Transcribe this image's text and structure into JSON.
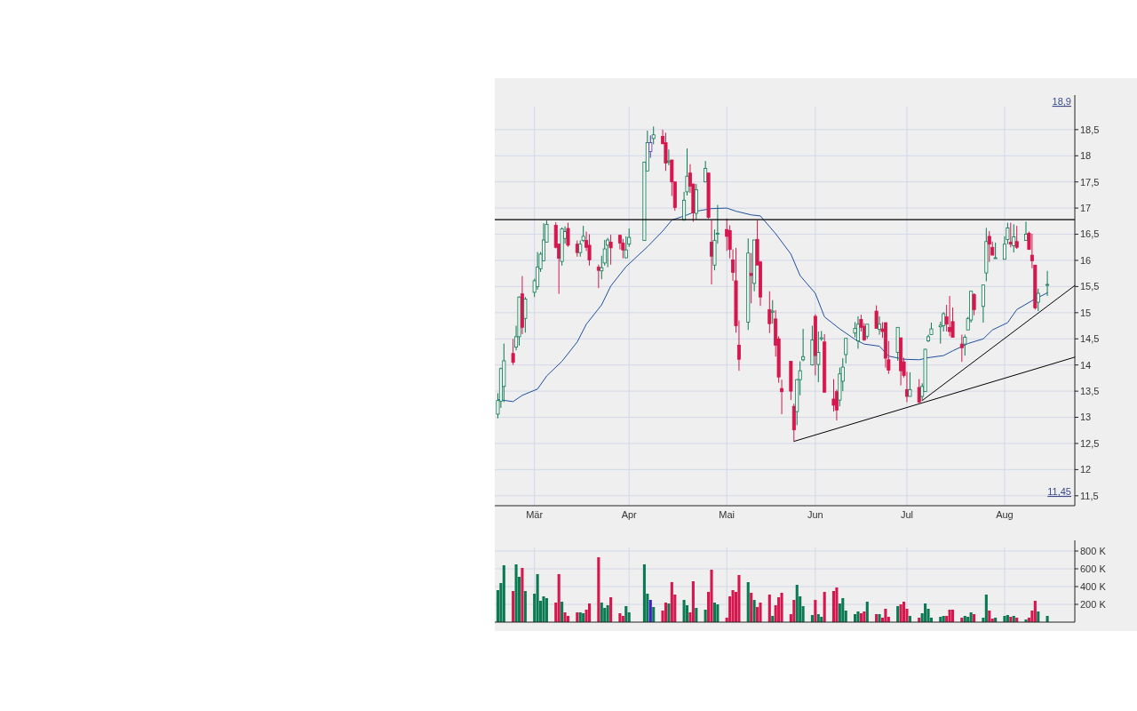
{
  "chart_data": [
    {
      "type": "candlestick",
      "x": [
        "--02-17",
        "--02-18",
        "--02-19",
        "--02-22",
        "--02-23",
        "--02-24",
        "--02-25",
        "--02-26",
        "--03-01",
        "--03-02",
        "--03-03",
        "--03-04",
        "--03-05",
        "--03-08",
        "--03-09",
        "--03-10",
        "--03-11",
        "--03-12",
        "--03-15",
        "--03-16",
        "--03-17",
        "--03-18",
        "--03-19",
        "--03-22",
        "--03-23",
        "--03-24",
        "--03-25",
        "--03-26",
        "--03-29",
        "--03-30",
        "--03-31",
        "--04-01",
        "--04-06",
        "--04-07",
        "--04-08",
        "--04-09",
        "--04-12",
        "--04-13",
        "--04-14",
        "--04-15",
        "--04-16",
        "--04-19",
        "--04-20",
        "--04-21",
        "--04-22",
        "--04-23",
        "--04-26",
        "--04-27",
        "--04-28",
        "--04-29",
        "--04-30",
        "--05-03",
        "--05-04",
        "--05-05",
        "--05-06",
        "--05-07",
        "--05-10",
        "--05-11",
        "--05-12",
        "--05-13",
        "--05-14",
        "--05-17",
        "--05-18",
        "--05-19",
        "--05-20",
        "--05-21",
        "--05-24",
        "--05-25",
        "--05-26",
        "--05-27",
        "--05-28",
        "--05-31",
        "--06-01",
        "--06-02",
        "--06-03",
        "--06-04",
        "--06-07",
        "--06-08",
        "--06-09",
        "--06-10",
        "--06-11",
        "--06-14",
        "--06-15",
        "--06-16",
        "--06-17",
        "--06-18",
        "--06-21",
        "--06-22",
        "--06-23",
        "--06-24",
        "--06-25",
        "--06-28",
        "--06-29",
        "--06-30",
        "--07-01",
        "--07-02",
        "--07-05",
        "--07-06",
        "--07-07",
        "--07-08",
        "--07-09",
        "--07-12",
        "--07-13",
        "--07-14",
        "--07-15",
        "--07-16",
        "--07-19",
        "--07-20",
        "--07-21",
        "--07-22",
        "--07-23",
        "--07-26",
        "--07-27",
        "--07-28",
        "--07-29",
        "--07-30",
        "--08-02",
        "--08-03",
        "--08-04",
        "--08-05",
        "--08-06",
        "--08-09",
        "--08-10",
        "--08-11",
        "--08-12",
        "--08-13",
        "--08-16"
      ],
      "ohlc": [
        [
          13.06,
          13.46,
          12.98,
          13.32
        ],
        [
          13.31,
          13.95,
          13.18,
          13.93
        ],
        [
          13.59,
          14.41,
          13.29,
          14.08
        ],
        [
          14.22,
          14.5,
          14.0,
          14.05
        ],
        [
          14.34,
          14.75,
          14.28,
          14.54
        ],
        [
          14.54,
          15.31,
          14.37,
          15.3
        ],
        [
          15.36,
          15.7,
          14.59,
          14.72
        ],
        [
          14.89,
          15.3,
          14.62,
          15.26
        ],
        [
          15.39,
          15.65,
          15.3,
          15.61
        ],
        [
          15.5,
          16.16,
          15.44,
          15.87
        ],
        [
          15.84,
          16.16,
          15.78,
          16.12
        ],
        [
          15.99,
          16.71,
          15.98,
          16.39
        ],
        [
          16.35,
          16.76,
          16.35,
          16.69
        ],
        [
          16.67,
          16.73,
          16.23,
          16.25
        ],
        [
          16.31,
          16.32,
          15.36,
          16.04
        ],
        [
          15.98,
          16.63,
          15.9,
          16.6
        ],
        [
          16.42,
          16.65,
          16.32,
          16.55
        ],
        [
          16.61,
          16.72,
          16.26,
          16.29
        ],
        [
          16.31,
          16.38,
          16.07,
          16.15
        ],
        [
          16.15,
          16.38,
          16.07,
          16.31
        ],
        [
          16.38,
          16.66,
          16.35,
          16.46
        ],
        [
          16.38,
          16.55,
          16.18,
          16.25
        ],
        [
          16.29,
          16.5,
          15.9,
          16.01
        ],
        [
          15.87,
          15.92,
          15.47,
          15.81
        ],
        [
          15.8,
          16.09,
          15.64,
          15.86
        ],
        [
          15.95,
          16.39,
          15.9,
          16.22
        ],
        [
          16.29,
          16.43,
          15.87,
          16.39
        ],
        [
          16.35,
          16.49,
          15.92,
          16.24
        ],
        [
          16.48,
          16.49,
          16.21,
          16.33
        ],
        [
          16.33,
          16.41,
          16.04,
          16.2
        ],
        [
          16.05,
          16.46,
          16.04,
          16.2
        ],
        [
          16.31,
          16.61,
          16.26,
          16.44
        ],
        [
          16.38,
          17.88,
          16.38,
          17.88
        ],
        [
          17.71,
          18.48,
          17.71,
          18.25
        ],
        [
          18.08,
          18.39,
          17.96,
          18.25
        ],
        [
          18.33,
          18.56,
          18.22,
          18.4
        ],
        [
          18.37,
          18.5,
          18.22,
          18.23
        ],
        [
          18.25,
          18.44,
          17.71,
          17.86
        ],
        [
          17.88,
          18.12,
          17.82,
          17.9
        ],
        [
          17.92,
          17.92,
          17.23,
          17.5
        ],
        [
          17.5,
          17.5,
          16.95,
          17.01
        ],
        [
          16.77,
          17.31,
          16.76,
          17.15
        ],
        [
          17.31,
          18.14,
          17.24,
          17.61
        ],
        [
          17.67,
          17.84,
          17.29,
          17.42
        ],
        [
          17.46,
          17.46,
          16.74,
          16.91
        ],
        [
          16.9,
          17.46,
          16.78,
          17.35
        ],
        [
          17.5,
          17.9,
          17.5,
          17.76
        ],
        [
          17.67,
          17.67,
          16.8,
          16.82
        ],
        [
          16.35,
          16.77,
          15.54,
          16.08
        ],
        [
          15.91,
          16.59,
          15.81,
          16.38
        ],
        [
          16.5,
          17.06,
          16.32,
          16.52
        ],
        [
          16.59,
          16.8,
          16.18,
          16.46
        ],
        [
          16.57,
          16.67,
          16.04,
          16.21
        ],
        [
          16.01,
          16.21,
          15.61,
          15.77
        ],
        [
          15.61,
          16.24,
          14.62,
          14.75
        ],
        [
          14.38,
          14.85,
          13.89,
          14.11
        ],
        [
          14.82,
          16.42,
          14.67,
          16.14
        ],
        [
          15.75,
          16.14,
          15.18,
          15.71
        ],
        [
          15.56,
          16.39,
          15.41,
          16.39
        ],
        [
          16.4,
          16.76,
          15.91,
          15.91
        ],
        [
          15.97,
          15.99,
          15.13,
          15.3
        ],
        [
          15.06,
          15.41,
          14.61,
          14.79
        ],
        [
          15.01,
          15.24,
          14.79,
          15.03
        ],
        [
          14.88,
          15.05,
          14.16,
          14.38
        ],
        [
          14.5,
          14.55,
          13.66,
          13.77
        ],
        [
          13.55,
          13.72,
          13.06,
          13.49
        ],
        [
          14.07,
          14.07,
          13.33,
          13.5
        ],
        [
          13.21,
          13.26,
          12.54,
          12.76
        ],
        [
          13.11,
          13.73,
          12.85,
          13.72
        ],
        [
          13.72,
          14.07,
          13.42,
          13.89
        ],
        [
          14.1,
          14.69,
          14.07,
          14.16
        ],
        [
          14.0,
          14.75,
          13.99,
          14.48
        ],
        [
          14.93,
          14.97,
          13.8,
          14.18
        ],
        [
          14.01,
          14.64,
          13.67,
          14.24
        ],
        [
          14.5,
          14.65,
          14.46,
          14.52
        ],
        [
          14.44,
          14.59,
          13.48,
          13.48
        ],
        [
          13.35,
          13.73,
          13.11,
          13.23
        ],
        [
          13.49,
          13.53,
          12.94,
          13.14
        ],
        [
          13.33,
          13.95,
          13.21,
          13.83
        ],
        [
          13.69,
          14.13,
          13.5,
          13.96
        ],
        [
          14.2,
          14.51,
          14.03,
          14.51
        ],
        [
          14.61,
          14.82,
          14.53,
          14.7
        ],
        [
          14.46,
          14.93,
          14.31,
          14.78
        ],
        [
          14.87,
          14.96,
          14.64,
          14.72
        ],
        [
          14.74,
          14.8,
          14.46,
          14.48
        ],
        [
          14.55,
          14.78,
          14.5,
          14.78
        ],
        [
          15.03,
          15.14,
          14.7,
          14.7
        ],
        [
          14.68,
          14.93,
          14.58,
          14.78
        ],
        [
          14.69,
          14.82,
          14.52,
          14.64
        ],
        [
          14.81,
          14.81,
          13.95,
          14.13
        ],
        [
          14.1,
          14.46,
          13.83,
          13.9
        ],
        [
          14.24,
          14.72,
          14.08,
          14.72
        ],
        [
          14.52,
          14.52,
          13.61,
          13.89
        ],
        [
          14.06,
          14.14,
          13.76,
          13.8
        ],
        [
          13.53,
          13.87,
          13.29,
          13.4
        ],
        [
          13.4,
          13.86,
          13.4,
          13.53
        ],
        [
          13.57,
          13.73,
          13.27,
          13.29
        ],
        [
          13.4,
          13.65,
          13.32,
          13.59
        ],
        [
          13.49,
          14.31,
          13.49,
          14.3
        ],
        [
          14.46,
          14.58,
          14.44,
          14.54
        ],
        [
          14.58,
          14.81,
          14.58,
          14.69
        ],
        [
          14.73,
          14.83,
          14.41,
          14.76
        ],
        [
          14.75,
          15.01,
          14.64,
          14.98
        ],
        [
          14.92,
          15.15,
          14.64,
          14.78
        ],
        [
          14.72,
          15.32,
          14.55,
          14.64
        ],
        [
          14.83,
          15.1,
          14.53,
          14.53
        ],
        [
          14.4,
          14.58,
          14.06,
          14.33
        ],
        [
          14.4,
          14.58,
          14.18,
          14.53
        ],
        [
          14.67,
          14.92,
          14.67,
          14.89
        ],
        [
          14.86,
          15.41,
          14.81,
          15.41
        ],
        [
          15.35,
          15.37,
          14.95,
          15.06
        ],
        [
          15.12,
          15.53,
          14.81,
          15.53
        ],
        [
          15.76,
          16.62,
          15.6,
          16.36
        ],
        [
          16.46,
          16.56,
          15.97,
          16.31
        ],
        [
          16.25,
          16.36,
          16.1,
          16.1
        ],
        [
          16.04,
          16.34,
          16.04,
          16.05
        ],
        [
          16.02,
          16.46,
          16.02,
          16.31
        ],
        [
          16.4,
          16.72,
          16.31,
          16.62
        ],
        [
          16.35,
          16.72,
          16.25,
          16.31
        ],
        [
          16.28,
          16.69,
          16.15,
          16.45
        ],
        [
          16.36,
          16.66,
          16.22,
          16.25
        ],
        [
          16.38,
          16.74,
          16.38,
          16.5
        ],
        [
          16.52,
          16.55,
          16.2,
          16.21
        ],
        [
          16.1,
          16.51,
          15.85,
          15.99
        ],
        [
          15.91,
          15.91,
          15.06,
          15.09
        ],
        [
          15.2,
          15.46,
          15.03,
          15.37
        ],
        [
          15.53,
          15.8,
          15.32,
          15.54
        ]
      ],
      "colors": [
        "#0b7a52",
        "#0b7a52",
        "#0b7a52",
        "#d5174d",
        "#0b7a52",
        "#0b7a52",
        "#d5174d",
        "#0b7a52",
        "#0b7a52",
        "#0b7a52",
        "#0b7a52",
        "#0b7a52",
        "#0b7a52",
        "#d5174d",
        "#d5174d",
        "#0b7a52",
        "#0b7a52",
        "#d5174d",
        "#d5174d",
        "#0b7a52",
        "#0b7a52",
        "#d5174d",
        "#d5174d",
        "#d5174d",
        "#0b7a52",
        "#0b7a52",
        "#0b7a52",
        "#d5174d",
        "#d5174d",
        "#d5174d",
        "#0b7a52",
        "#0b7a52",
        "#0b7a52",
        "#0b7a52",
        "#5b2fb5",
        "#0b7a52",
        "#d5174d",
        "#d5174d",
        "#0b7a52",
        "#d5174d",
        "#d5174d",
        "#0b7a52",
        "#0b7a52",
        "#d5174d",
        "#d5174d",
        "#0b7a52",
        "#0b7a52",
        "#d5174d",
        "#d5174d",
        "#0b7a52",
        "#0b7a52",
        "#d5174d",
        "#d5174d",
        "#d5174d",
        "#d5174d",
        "#d5174d",
        "#0b7a52",
        "#d5174d",
        "#0b7a52",
        "#d5174d",
        "#d5174d",
        "#d5174d",
        "#0b7a52",
        "#d5174d",
        "#d5174d",
        "#d5174d",
        "#d5174d",
        "#d5174d",
        "#0b7a52",
        "#0b7a52",
        "#0b7a52",
        "#0b7a52",
        "#d5174d",
        "#0b7a52",
        "#0b7a52",
        "#d5174d",
        "#d5174d",
        "#d5174d",
        "#0b7a52",
        "#0b7a52",
        "#0b7a52",
        "#0b7a52",
        "#0b7a52",
        "#d5174d",
        "#d5174d",
        "#0b7a52",
        "#d5174d",
        "#0b7a52",
        "#d5174d",
        "#d5174d",
        "#d5174d",
        "#0b7a52",
        "#d5174d",
        "#d5174d",
        "#d5174d",
        "#0b7a52",
        "#d5174d",
        "#0b7a52",
        "#0b7a52",
        "#0b7a52",
        "#0b7a52",
        "#0b7a52",
        "#0b7a52",
        "#d5174d",
        "#d5174d",
        "#d5174d",
        "#d5174d",
        "#0b7a52",
        "#0b7a52",
        "#0b7a52",
        "#d5174d",
        "#0b7a52",
        "#0b7a52",
        "#d5174d",
        "#d5174d",
        "#0b7a52",
        "#0b7a52",
        "#0b7a52",
        "#d5174d",
        "#0b7a52",
        "#d5174d",
        "#0b7a52",
        "#d5174d",
        "#d5174d",
        "#d5174d",
        "#0b7a52",
        "#0b7a52"
      ],
      "series": [
        {
          "type": "line",
          "color": "#1f4fa0",
          "x": [
            "--02-17",
            "--02-22",
            "--02-25",
            "--03-02",
            "--03-05",
            "--03-10",
            "--03-15",
            "--03-18",
            "--03-23",
            "--03-26",
            "--03-31",
            "--04-07",
            "--04-12",
            "--04-15",
            "--04-20",
            "--04-23",
            "--04-28",
            "--05-03",
            "--05-06",
            "--05-11",
            "--05-14",
            "--05-19",
            "--05-24",
            "--05-27",
            "--06-01",
            "--06-04",
            "--06-09",
            "--06-14",
            "--06-17",
            "--06-22",
            "--06-25",
            "--06-30",
            "--07-05",
            "--07-08",
            "--07-13",
            "--07-16",
            "--07-21",
            "--07-26",
            "--07-29",
            "--08-03",
            "--08-06",
            "--08-11",
            "--08-16"
          ],
          "values": [
            13.34,
            13.3,
            13.42,
            13.54,
            13.79,
            14.07,
            14.44,
            14.78,
            15.15,
            15.51,
            15.88,
            16.26,
            16.56,
            16.77,
            16.87,
            16.94,
            16.99,
            17.0,
            16.94,
            16.87,
            16.85,
            16.51,
            16.12,
            15.71,
            15.37,
            14.92,
            14.69,
            14.49,
            14.4,
            14.36,
            14.17,
            14.11,
            14.1,
            14.14,
            14.18,
            14.27,
            14.41,
            14.5,
            14.67,
            14.81,
            15.06,
            15.23,
            15.38
          ]
        },
        {
          "type": "line",
          "color": "#000000",
          "x": [
            "--05-25",
            "--08-25"
          ],
          "values": [
            12.54,
            14.15
          ]
        },
        {
          "type": "line",
          "color": "#000000",
          "x": [
            "--07-06",
            "--08-25"
          ],
          "values": [
            13.32,
            15.52
          ]
        }
      ],
      "ref_lines": [
        {
          "axis": "y",
          "value": 16.78,
          "color": "#000000"
        }
      ],
      "annotations": [
        "18,9",
        "11,45"
      ],
      "xlim": [
        "--02-16",
        "--08-25"
      ],
      "xticks": [
        {
          "value": "--03-01",
          "label": "Mär"
        },
        {
          "value": "--04-01",
          "label": "Apr"
        },
        {
          "value": "--05-03",
          "label": "Mai"
        },
        {
          "value": "--06-01",
          "label": "Jun"
        },
        {
          "value": "--07-01",
          "label": "Jul"
        },
        {
          "value": "--08-02",
          "label": "Aug"
        }
      ],
      "ylim": [
        11.31,
        19.16
      ],
      "yticks": [
        {
          "value": 11.5,
          "label": "11,5"
        },
        12,
        {
          "value": 12.5,
          "label": "12,5"
        },
        13,
        {
          "value": 13.5,
          "label": "13,5"
        },
        14,
        {
          "value": 14.5,
          "label": "14,5"
        },
        15,
        {
          "value": 15.5,
          "label": "15,5"
        },
        16,
        {
          "value": 16.5,
          "label": "16,5"
        },
        17,
        {
          "value": 17.5,
          "label": "17,5"
        },
        18,
        {
          "value": 18.5,
          "label": "18,5"
        }
      ],
      "grid": true
    },
    {
      "type": "bar",
      "x": [
        "--02-17",
        "--02-18",
        "--02-19",
        "--02-22",
        "--02-23",
        "--02-24",
        "--02-25",
        "--02-26",
        "--03-01",
        "--03-02",
        "--03-03",
        "--03-04",
        "--03-05",
        "--03-08",
        "--03-09",
        "--03-10",
        "--03-11",
        "--03-12",
        "--03-15",
        "--03-16",
        "--03-17",
        "--03-18",
        "--03-19",
        "--03-22",
        "--03-23",
        "--03-24",
        "--03-25",
        "--03-26",
        "--03-29",
        "--03-30",
        "--03-31",
        "--04-01",
        "--04-06",
        "--04-07",
        "--04-08",
        "--04-09",
        "--04-12",
        "--04-13",
        "--04-14",
        "--04-15",
        "--04-16",
        "--04-19",
        "--04-20",
        "--04-21",
        "--04-22",
        "--04-23",
        "--04-26",
        "--04-27",
        "--04-28",
        "--04-29",
        "--04-30",
        "--05-03",
        "--05-04",
        "--05-05",
        "--05-06",
        "--05-07",
        "--05-10",
        "--05-11",
        "--05-12",
        "--05-13",
        "--05-14",
        "--05-17",
        "--05-18",
        "--05-19",
        "--05-20",
        "--05-21",
        "--05-24",
        "--05-25",
        "--05-26",
        "--05-27",
        "--05-28",
        "--05-31",
        "--06-01",
        "--06-02",
        "--06-03",
        "--06-04",
        "--06-07",
        "--06-08",
        "--06-09",
        "--06-10",
        "--06-11",
        "--06-14",
        "--06-15",
        "--06-16",
        "--06-17",
        "--06-18",
        "--06-21",
        "--06-22",
        "--06-23",
        "--06-24",
        "--06-25",
        "--06-28",
        "--06-29",
        "--06-30",
        "--07-01",
        "--07-02",
        "--07-05",
        "--07-06",
        "--07-07",
        "--07-08",
        "--07-09",
        "--07-12",
        "--07-13",
        "--07-14",
        "--07-15",
        "--07-16",
        "--07-19",
        "--07-20",
        "--07-21",
        "--07-22",
        "--07-23",
        "--07-26",
        "--07-27",
        "--07-28",
        "--07-29",
        "--07-30",
        "--08-02",
        "--08-03",
        "--08-04",
        "--08-05",
        "--08-06",
        "--08-09",
        "--08-10",
        "--08-11",
        "--08-12",
        "--08-13",
        "--08-16"
      ],
      "values": [
        360000,
        440000,
        640000,
        350000,
        650000,
        510000,
        610000,
        350000,
        320000,
        540000,
        240000,
        290000,
        270000,
        220000,
        540000,
        230000,
        110000,
        70000,
        110000,
        110000,
        100000,
        140000,
        210000,
        730000,
        220000,
        160000,
        190000,
        280000,
        100000,
        70000,
        180000,
        110000,
        650000,
        320000,
        250000,
        170000,
        130000,
        220000,
        210000,
        450000,
        310000,
        250000,
        190000,
        110000,
        460000,
        160000,
        140000,
        340000,
        590000,
        220000,
        200000,
        50000,
        290000,
        360000,
        340000,
        530000,
        450000,
        330000,
        250000,
        170000,
        220000,
        310000,
        70000,
        190000,
        280000,
        330000,
        90000,
        250000,
        420000,
        290000,
        180000,
        80000,
        250000,
        90000,
        60000,
        340000,
        350000,
        390000,
        210000,
        270000,
        130000,
        90000,
        120000,
        100000,
        120000,
        230000,
        90000,
        90000,
        50000,
        150000,
        60000,
        180000,
        200000,
        230000,
        150000,
        70000,
        50000,
        100000,
        210000,
        150000,
        50000,
        60000,
        70000,
        70000,
        140000,
        140000,
        50000,
        70000,
        60000,
        110000,
        90000,
        50000,
        310000,
        130000,
        40000,
        50000,
        70000,
        80000,
        60000,
        70000,
        50000,
        30000,
        50000,
        130000,
        240000,
        120000,
        70000
      ],
      "colors": [
        "#0b7a52",
        "#0b7a52",
        "#0b7a52",
        "#d5174d",
        "#0b7a52",
        "#0b7a52",
        "#d5174d",
        "#0b7a52",
        "#0b7a52",
        "#0b7a52",
        "#0b7a52",
        "#0b7a52",
        "#0b7a52",
        "#d5174d",
        "#d5174d",
        "#0b7a52",
        "#d5174d",
        "#d5174d",
        "#d5174d",
        "#0b7a52",
        "#0b7a52",
        "#d5174d",
        "#d5174d",
        "#d5174d",
        "#0b7a52",
        "#0b7a52",
        "#0b7a52",
        "#d5174d",
        "#d5174d",
        "#d5174d",
        "#0b7a52",
        "#0b7a52",
        "#0b7a52",
        "#0b7a52",
        "#3a1fc8",
        "#0b7a52",
        "#d5174d",
        "#d5174d",
        "#0b7a52",
        "#d5174d",
        "#d5174d",
        "#0b7a52",
        "#0b7a52",
        "#d5174d",
        "#d5174d",
        "#0b7a52",
        "#0b7a52",
        "#d5174d",
        "#d5174d",
        "#0b7a52",
        "#0b7a52",
        "#d5174d",
        "#d5174d",
        "#d5174d",
        "#d5174d",
        "#d5174d",
        "#0b7a52",
        "#d5174d",
        "#0b7a52",
        "#d5174d",
        "#d5174d",
        "#d5174d",
        "#0b7a52",
        "#d5174d",
        "#d5174d",
        "#d5174d",
        "#d5174d",
        "#d5174d",
        "#0b7a52",
        "#0b7a52",
        "#0b7a52",
        "#0b7a52",
        "#d5174d",
        "#0b7a52",
        "#0b7a52",
        "#d5174d",
        "#d5174d",
        "#d5174d",
        "#0b7a52",
        "#0b7a52",
        "#0b7a52",
        "#0b7a52",
        "#0b7a52",
        "#d5174d",
        "#d5174d",
        "#0b7a52",
        "#d5174d",
        "#0b7a52",
        "#d5174d",
        "#d5174d",
        "#d5174d",
        "#0b7a52",
        "#d5174d",
        "#d5174d",
        "#d5174d",
        "#0b7a52",
        "#d5174d",
        "#0b7a52",
        "#0b7a52",
        "#0b7a52",
        "#0b7a52",
        "#0b7a52",
        "#0b7a52",
        "#d5174d",
        "#d5174d",
        "#d5174d",
        "#d5174d",
        "#0b7a52",
        "#0b7a52",
        "#0b7a52",
        "#d5174d",
        "#0b7a52",
        "#0b7a52",
        "#d5174d",
        "#d5174d",
        "#0b7a52",
        "#0b7a52",
        "#0b7a52",
        "#d5174d",
        "#0b7a52",
        "#d5174d",
        "#0b7a52",
        "#d5174d",
        "#d5174d",
        "#d5174d",
        "#0b7a52",
        "#0b7a52"
      ],
      "xlim": [
        "--02-16",
        "--08-25"
      ],
      "xticks": [
        {
          "value": "--03-01",
          "label": null
        },
        {
          "value": "--04-01",
          "label": null
        },
        {
          "value": "--05-03",
          "label": null
        },
        {
          "value": "--06-01",
          "label": null
        },
        {
          "value": "--07-01",
          "label": null
        },
        {
          "value": "--08-02",
          "label": null
        }
      ],
      "ylim": [
        0,
        920000
      ],
      "yticks": [
        {
          "value": 200000,
          "label": "200 K"
        },
        {
          "value": 400000,
          "label": "400 K"
        },
        {
          "value": 600000,
          "label": "600 K"
        },
        {
          "value": 800000,
          "label": "800 K"
        }
      ],
      "grid": true,
      "tick_labels": "y"
    }
  ]
}
